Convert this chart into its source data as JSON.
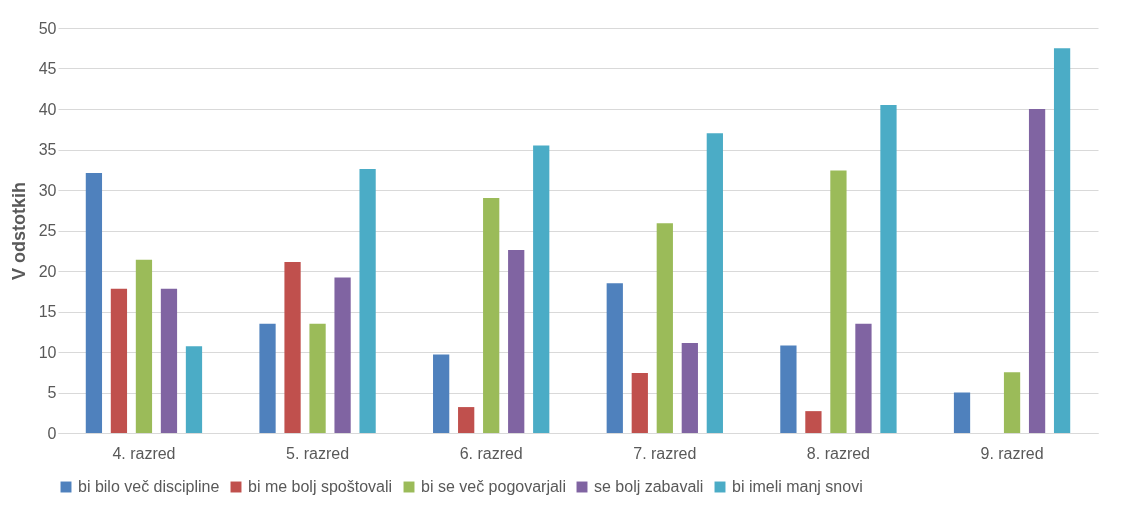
{
  "chart_data": {
    "type": "bar",
    "ylabel": "V odstotkih",
    "categories": [
      "4. razred",
      "5. razred",
      "6. razred",
      "7. razred",
      "8. razred",
      "9. razred"
    ],
    "series": [
      {
        "name": "bi bilo več discipline",
        "color": "#4f81bd",
        "values": [
          32.1,
          13.5,
          9.7,
          18.5,
          10.8,
          5.0
        ]
      },
      {
        "name": "bi me bolj spoštovali",
        "color": "#c0504d",
        "values": [
          17.8,
          21.1,
          3.2,
          7.4,
          2.7,
          0
        ]
      },
      {
        "name": "bi se več pogovarjali",
        "color": "#9bbb59",
        "values": [
          21.4,
          13.5,
          29.0,
          25.9,
          32.4,
          7.5
        ]
      },
      {
        "name": "se bolj zabavali",
        "color": "#8064a2",
        "values": [
          17.8,
          19.2,
          22.6,
          11.1,
          13.5,
          40.0
        ]
      },
      {
        "name": "bi imeli manj snovi",
        "color": "#4bacc6",
        "values": [
          10.7,
          32.6,
          35.5,
          37.0,
          40.5,
          47.5
        ]
      }
    ],
    "ylim": [
      0,
      50
    ],
    "yticks": [
      0,
      5,
      10,
      15,
      20,
      25,
      30,
      35,
      40,
      45,
      50
    ],
    "grid": "y",
    "legend": "bottom"
  }
}
